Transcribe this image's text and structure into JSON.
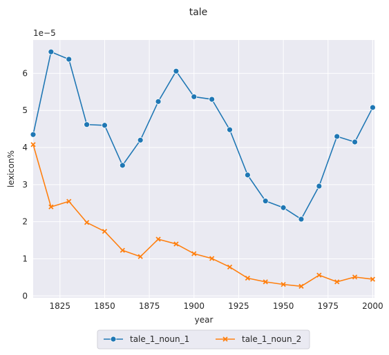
{
  "chart_data": {
    "type": "line",
    "title": "tale",
    "xlabel": "year",
    "ylabel": "lexicon%",
    "y_scale_label": "1e−5",
    "xlim": [
      1810,
      2001
    ],
    "ylim": [
      -0.05,
      6.9
    ],
    "x_ticks": [
      1825,
      1850,
      1875,
      1900,
      1925,
      1950,
      1975,
      2000
    ],
    "y_ticks": [
      0,
      1,
      2,
      3,
      4,
      5,
      6
    ],
    "grid": true,
    "legend_position": "bottom-center",
    "x": [
      1810,
      1820,
      1830,
      1840,
      1850,
      1860,
      1870,
      1880,
      1890,
      1900,
      1910,
      1920,
      1930,
      1940,
      1950,
      1960,
      1970,
      1980,
      1990,
      2000
    ],
    "series": [
      {
        "name": "tale_1_noun_1",
        "color": "#1f77b4",
        "marker": "circle",
        "values": [
          4.35,
          6.58,
          6.38,
          4.62,
          4.6,
          3.52,
          4.2,
          5.24,
          6.06,
          5.37,
          5.3,
          4.48,
          3.26,
          2.56,
          2.38,
          2.07,
          2.96,
          4.3,
          4.15,
          5.08
        ]
      },
      {
        "name": "tale_1_noun_2",
        "color": "#ff7f0e",
        "marker": "x",
        "values": [
          4.08,
          2.4,
          2.55,
          1.98,
          1.74,
          1.23,
          1.06,
          1.53,
          1.4,
          1.14,
          1.01,
          0.78,
          0.48,
          0.38,
          0.31,
          0.26,
          0.56,
          0.38,
          0.51,
          0.45
        ]
      }
    ]
  }
}
